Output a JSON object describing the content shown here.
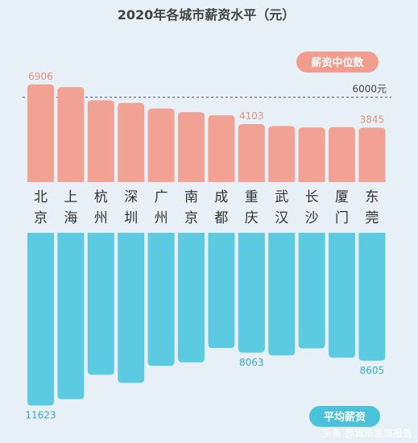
{
  "chart_data": {
    "type": "bar",
    "title": "2020年各城市薪资水平（元）",
    "categories": [
      "北京",
      "上海",
      "杭州",
      "深圳",
      "广州",
      "南京",
      "成都",
      "重庆",
      "武汉",
      "长沙",
      "厦门",
      "东莞"
    ],
    "series": [
      {
        "name": "薪资中位数",
        "color": "#f2a294",
        "values": [
          6906,
          6720,
          5780,
          5600,
          5200,
          4950,
          4720,
          4103,
          3960,
          3860,
          3880,
          3845
        ],
        "labels": [
          "6906",
          "",
          "",
          "",
          "",
          "",
          "",
          "4103",
          "",
          "",
          "",
          "3845"
        ]
      },
      {
        "name": "平均薪资",
        "color": "#5ccbe1",
        "values": [
          11623,
          11200,
          9550,
          10100,
          8960,
          8720,
          7750,
          8063,
          8250,
          7780,
          8400,
          8605
        ],
        "labels": [
          "11623",
          "",
          "",
          "",
          "",
          "",
          "",
          "8063",
          "",
          "",
          "",
          "8605"
        ]
      }
    ],
    "reference_line": {
      "value": 6000,
      "label": "6000元"
    }
  },
  "footer": {
    "source": "头条 @城市发展报告"
  }
}
